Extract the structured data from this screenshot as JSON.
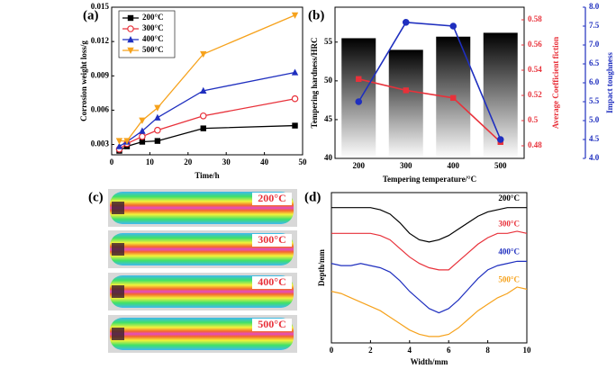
{
  "chart_data": [
    {
      "type": "line",
      "panel_label": "(a)",
      "xlabel": "Time/h",
      "ylabel": "Corrosion weight loss/g",
      "x": [
        2,
        4,
        8,
        12,
        24,
        48
      ],
      "xlim": [
        0,
        50
      ],
      "xticks": [
        0,
        10,
        20,
        30,
        40,
        50
      ],
      "ylim": [
        0.0021,
        0.015
      ],
      "yticks": [
        0.003,
        0.006,
        0.009,
        0.012,
        0.015
      ],
      "markers": [
        "square",
        "circle",
        "triangle-up",
        "triangle-down"
      ],
      "legend": "upper-left",
      "series": [
        {
          "name": "200°C",
          "color": "#000000",
          "values": [
            0.00245,
            0.00284,
            0.00324,
            0.00331,
            0.00441,
            0.00465
          ]
        },
        {
          "name": "300°C",
          "color": "#e8313a",
          "values": [
            0.0026,
            0.00308,
            0.0037,
            0.00425,
            0.0055,
            0.007
          ]
        },
        {
          "name": "400°C",
          "color": "#1f2fbf",
          "values": [
            0.00284,
            0.00324,
            0.00418,
            0.00535,
            0.0077,
            0.0093
          ]
        },
        {
          "name": "500°C",
          "color": "#f6a21c",
          "values": [
            0.00331,
            0.00331,
            0.0051,
            0.0062,
            0.0109,
            0.0143
          ]
        }
      ]
    },
    {
      "type": "bar_line",
      "panel_label": "(b)",
      "xlabel": "Tempering temperature/°C",
      "categories": [
        "200",
        "300",
        "400",
        "500"
      ],
      "ylabel": "Tempering hardness/HRC",
      "ylim": [
        40,
        59.5
      ],
      "yticks": [
        40,
        45,
        50,
        55
      ],
      "y2label": "Average Coefficient fiction",
      "y2lim": [
        0.47,
        0.59
      ],
      "y2ticks": [
        0.48,
        0.5,
        0.52,
        0.54,
        0.56,
        0.58
      ],
      "y2color": "#e8313a",
      "y3label": "Impact toughness",
      "y3lim": [
        4,
        8
      ],
      "y3color": "#1f2fbf",
      "y3ticks": [
        {
          "value": 4,
          "label": "4.0"
        },
        4.5,
        {
          "value": 5,
          "label": "5.0"
        },
        5.5,
        {
          "value": 6,
          "label": "6.0"
        },
        6.5,
        {
          "value": 7,
          "label": "7.0"
        },
        7.5,
        {
          "value": 8,
          "label": "8.0"
        }
      ],
      "series": [
        {
          "axis": "y",
          "kind": "bar",
          "values": [
            55.5,
            54,
            55.7,
            56.2
          ]
        },
        {
          "axis": "y2",
          "kind": "line",
          "marker": "square",
          "color": "#e8313a",
          "values": [
            0.533,
            0.524,
            0.518,
            0.483
          ]
        },
        {
          "axis": "y3",
          "kind": "line",
          "marker": "circle",
          "color": "#1f2fbf",
          "values": [
            5.5,
            7.6,
            7.5,
            4.5
          ]
        }
      ]
    },
    {
      "type": "profile",
      "panel_label": "(d)",
      "xlabel": "Width/mm",
      "ylabel": "Depth/mm",
      "x": [
        0,
        0.5,
        1,
        1.5,
        2,
        2.5,
        3,
        3.5,
        4,
        4.5,
        5,
        5.5,
        6,
        6.5,
        7,
        7.5,
        8,
        8.5,
        9,
        9.5,
        10
      ],
      "xlim": [
        0,
        10
      ],
      "xticks": [
        0,
        2,
        4,
        6,
        8,
        10
      ],
      "ylim": [
        0,
        7
      ],
      "series": [
        {
          "name": "200°C",
          "color": "#000000",
          "values": [
            6.3,
            6.3,
            6.3,
            6.3,
            6.3,
            6.2,
            6.0,
            5.6,
            5.1,
            4.8,
            4.7,
            4.8,
            5.0,
            5.3,
            5.6,
            5.9,
            6.1,
            6.2,
            6.3,
            6.3,
            6.3
          ]
        },
        {
          "name": "300°C",
          "color": "#e8313a",
          "values": [
            5.1,
            5.1,
            5.1,
            5.1,
            5.1,
            5.0,
            4.8,
            4.4,
            4.0,
            3.7,
            3.5,
            3.4,
            3.4,
            3.8,
            4.2,
            4.6,
            4.9,
            5.1,
            5.1,
            5.2,
            5.1
          ]
        },
        {
          "name": "400°C",
          "color": "#1f2fbf",
          "values": [
            3.7,
            3.6,
            3.6,
            3.7,
            3.6,
            3.5,
            3.3,
            2.9,
            2.4,
            2.0,
            1.6,
            1.4,
            1.6,
            2.0,
            2.5,
            3.0,
            3.4,
            3.6,
            3.7,
            3.8,
            3.8
          ]
        },
        {
          "name": "500°C",
          "color": "#f6a21c",
          "values": [
            2.4,
            2.3,
            2.1,
            1.9,
            1.7,
            1.5,
            1.2,
            0.9,
            0.6,
            0.4,
            0.3,
            0.3,
            0.4,
            0.7,
            1.1,
            1.5,
            1.8,
            2.1,
            2.3,
            2.6,
            2.5
          ]
        }
      ]
    }
  ],
  "thermal_images": {
    "panel_label": "(c)",
    "labels": [
      "200°C",
      "300°C",
      "400°C",
      "500°C"
    ]
  }
}
